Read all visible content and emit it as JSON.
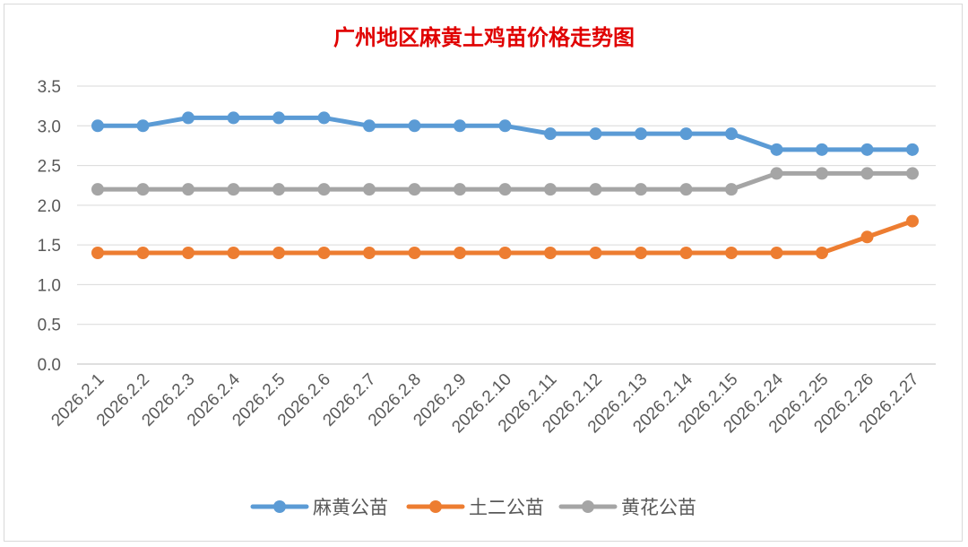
{
  "chart_data": {
    "type": "line",
    "title": "广州地区麻黄土鸡苗价格走势图",
    "xlabel": "",
    "ylabel": "",
    "ylim": [
      0,
      3.5
    ],
    "yticks": [
      "0.0",
      "0.5",
      "1.0",
      "1.5",
      "2.0",
      "2.5",
      "3.0",
      "3.5"
    ],
    "grid": true,
    "legend_position": "bottom",
    "categories": [
      "2026.2.1",
      "2026.2.2",
      "2026.2.3",
      "2026.2.4",
      "2026.2.5",
      "2026.2.6",
      "2026.2.7",
      "2026.2.8",
      "2026.2.9",
      "2026.2.10",
      "2026.2.11",
      "2026.2.12",
      "2026.2.13",
      "2026.2.14",
      "2026.2.15",
      "2026.2.24",
      "2026.2.25",
      "2026.2.26",
      "2026.2.27"
    ],
    "series": [
      {
        "name": "麻黄公苗",
        "color": "#5b9bd5",
        "values": [
          3.0,
          3.0,
          3.1,
          3.1,
          3.1,
          3.1,
          3.0,
          3.0,
          3.0,
          3.0,
          2.9,
          2.9,
          2.9,
          2.9,
          2.9,
          2.7,
          2.7,
          2.7,
          2.7
        ]
      },
      {
        "name": "土二公苗",
        "color": "#ed7d31",
        "values": [
          1.4,
          1.4,
          1.4,
          1.4,
          1.4,
          1.4,
          1.4,
          1.4,
          1.4,
          1.4,
          1.4,
          1.4,
          1.4,
          1.4,
          1.4,
          1.4,
          1.4,
          1.6,
          1.8
        ]
      },
      {
        "name": "黄花公苗",
        "color": "#a5a5a5",
        "values": [
          2.2,
          2.2,
          2.2,
          2.2,
          2.2,
          2.2,
          2.2,
          2.2,
          2.2,
          2.2,
          2.2,
          2.2,
          2.2,
          2.2,
          2.2,
          2.4,
          2.4,
          2.4,
          2.4
        ]
      }
    ]
  }
}
